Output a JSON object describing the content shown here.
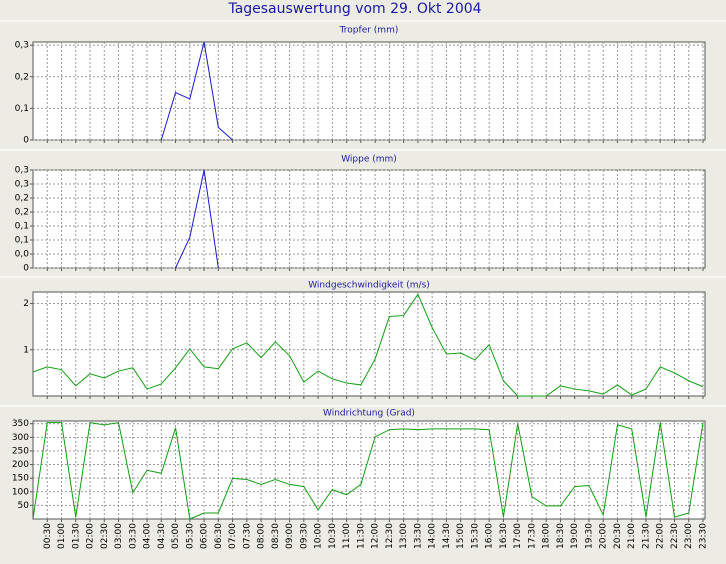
{
  "title": "Tagesauswertung vom 29. Okt 2004",
  "chart_data": [
    {
      "type": "line",
      "title": "Tropfer (mm)",
      "color": "#1a1acc",
      "grid": true,
      "ylim": [
        0,
        0.31
      ],
      "yticks": [
        0,
        {
          "value": 0.1,
          "label": "0,1"
        },
        {
          "value": 0.2,
          "label": "0,2"
        },
        {
          "value": 0.3,
          "label": "0,3"
        }
      ],
      "values": [
        null,
        null,
        null,
        null,
        null,
        null,
        null,
        null,
        null,
        0,
        0.15,
        0.13,
        0.31,
        0.04,
        0,
        null,
        null,
        null,
        null,
        null,
        null,
        null,
        null,
        null,
        null,
        null,
        null,
        null,
        null,
        null,
        null,
        null,
        null,
        null,
        null,
        null,
        null,
        null,
        null,
        null,
        null,
        null,
        null,
        null,
        null,
        null,
        null,
        null
      ]
    },
    {
      "type": "line",
      "title": "Wippe (mm)",
      "color": "#1a1acc",
      "grid": true,
      "ylim": [
        0,
        0.32
      ],
      "yticks": [
        0,
        {
          "value": 0.0457,
          "label": "0,0"
        },
        {
          "value": 0.0914,
          "label": "0,1"
        },
        {
          "value": 0.1371,
          "label": "0,1"
        },
        {
          "value": 0.1829,
          "label": "0,2"
        },
        {
          "value": 0.2286,
          "label": "0,2"
        },
        {
          "value": 0.2743,
          "label": "0,3"
        },
        {
          "value": 0.32,
          "label": "0,3"
        }
      ],
      "values": [
        null,
        null,
        null,
        null,
        null,
        null,
        null,
        null,
        null,
        null,
        0,
        0.1,
        0.32,
        0,
        null,
        null,
        null,
        null,
        null,
        null,
        null,
        null,
        null,
        null,
        null,
        null,
        null,
        null,
        null,
        null,
        null,
        null,
        null,
        null,
        null,
        null,
        null,
        null,
        null,
        null,
        null,
        null,
        null,
        null,
        null,
        null,
        null,
        null
      ]
    },
    {
      "type": "line",
      "title": "Windgeschwindigkeit (m/s)",
      "color": "#10a010",
      "grid": true,
      "ylim": [
        0,
        2.25
      ],
      "yticks": [
        1,
        2
      ],
      "values": [
        0.52,
        0.63,
        0.57,
        0.22,
        0.48,
        0.39,
        0.54,
        0.61,
        0.15,
        0.26,
        0.61,
        1.02,
        0.63,
        0.59,
        1.02,
        1.15,
        0.83,
        1.17,
        0.87,
        0.3,
        0.54,
        0.37,
        0.28,
        0.24,
        0.8,
        1.72,
        1.74,
        2.2,
        1.48,
        0.91,
        0.93,
        0.78,
        1.11,
        0.33,
        0,
        0,
        0,
        0.22,
        0.15,
        0.11,
        0.04,
        0.24,
        0.02,
        0.15,
        0.63,
        0.5,
        0.33,
        0.2
      ]
    },
    {
      "type": "line",
      "title": "Windrichtung (Grad)",
      "color": "#10a010",
      "grid": true,
      "ylim": [
        0,
        360
      ],
      "yticks": [
        50,
        100,
        150,
        200,
        250,
        300,
        350
      ],
      "values": [
        0,
        354,
        354,
        7,
        354,
        346,
        354,
        97,
        179,
        168,
        335,
        0,
        22,
        22,
        149,
        145,
        127,
        145,
        127,
        119,
        34,
        108,
        89,
        127,
        302,
        328,
        331,
        328,
        331,
        331,
        331,
        331,
        328,
        7,
        350,
        82,
        48,
        48,
        119,
        123,
        15,
        346,
        331,
        7,
        354,
        7,
        22,
        354
      ],
      "categories": [
        null,
        "00:30",
        "01:00",
        "01:30",
        "02:00",
        "02:30",
        "03:00",
        "03:30",
        "04:00",
        "04:30",
        "05:00",
        "05:30",
        "06:00",
        "06:30",
        "07:00",
        "07:30",
        "08:00",
        "08:30",
        "09:00",
        "09:30",
        "10:00",
        "10:30",
        "11:00",
        "11:30",
        "12:00",
        "12:30",
        "13:00",
        "13:30",
        "14:00",
        "14:30",
        "15:00",
        "15:30",
        "16:00",
        "16:30",
        "17:00",
        "17:30",
        "18:00",
        "18:30",
        "19:00",
        "19:30",
        "20:00",
        "20:30",
        "21:00",
        "21:30",
        "22:00",
        "22:30",
        "23:00",
        "23:30"
      ]
    }
  ]
}
